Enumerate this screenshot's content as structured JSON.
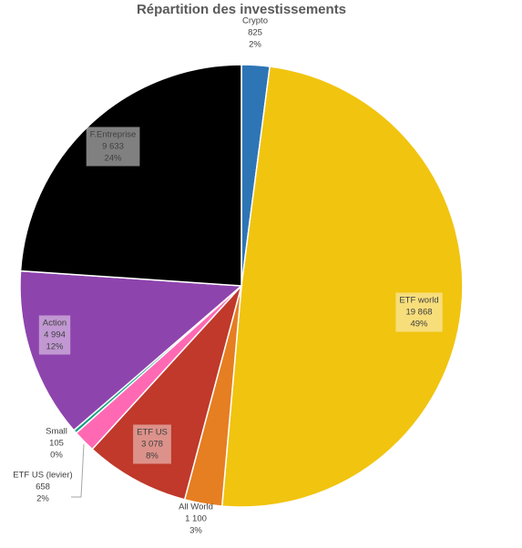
{
  "chart_data": {
    "type": "pie",
    "title": "Répartition des investissements",
    "slices": [
      {
        "name": "Crypto",
        "value": 825,
        "value_label": "825",
        "percent_label": "2%",
        "color": "#2E75B6"
      },
      {
        "name": "ETF world",
        "value": 19868,
        "value_label": "19 868",
        "percent_label": "49%",
        "color": "#F1C40F"
      },
      {
        "name": "All World",
        "value": 1100,
        "value_label": "1 100",
        "percent_label": "3%",
        "color": "#E67E22"
      },
      {
        "name": "ETF US",
        "value": 3078,
        "value_label": "3 078",
        "percent_label": "8%",
        "color": "#C0392B"
      },
      {
        "name": "ETF US (levier)",
        "value": 658,
        "value_label": "658",
        "percent_label": "2%",
        "color": "#FF69B4"
      },
      {
        "name": "Small",
        "value": 105,
        "value_label": "105",
        "percent_label": "0%",
        "color": "#16A085"
      },
      {
        "name": "Action",
        "value": 4994,
        "value_label": "4 994",
        "percent_label": "12%",
        "color": "#8E44AD"
      },
      {
        "name": "F.Entreprise",
        "value": 9633,
        "value_label": "9 633",
        "percent_label": "24%",
        "color": "#000000"
      }
    ],
    "start_angle": "12 o'clock",
    "direction": "clockwise",
    "legend": "none"
  }
}
